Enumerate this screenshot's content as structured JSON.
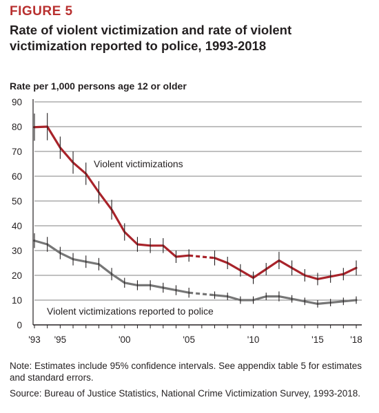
{
  "figure_label": "FIGURE 5",
  "title": "Rate of violent victimization and rate of violent victimization reported to police, 1993-2018",
  "note": "Note: Estimates include 95% confidence intervals. See appendix table 5 for estimates and standard errors.",
  "source": "Source: Bureau of Justice Statistics, National Crime Victimization Survey, 1993-2018.",
  "colors": {
    "accent": "#b8302f",
    "violent": "#a8232a",
    "reported": "#767676",
    "axis": "#231f20",
    "grid": "#808080"
  },
  "chart_data": {
    "type": "line",
    "title": "Rate of violent victimization and rate of violent victimization reported to police, 1993-2018",
    "ylabel": "Rate per 1,000 persons age 12 or older",
    "xlabel": "",
    "ylim": [
      0,
      90
    ],
    "yticks": [
      0,
      10,
      20,
      30,
      40,
      50,
      60,
      70,
      80,
      90
    ],
    "xlim": [
      1993,
      2018
    ],
    "xticks": [
      {
        "year": 1993,
        "label": "'93"
      },
      {
        "year": 1995,
        "label": "'95"
      },
      {
        "year": 2000,
        "label": "'00"
      },
      {
        "year": 2005,
        "label": "'05"
      },
      {
        "year": 2010,
        "label": "'10"
      },
      {
        "year": 2015,
        "label": "'15"
      },
      {
        "year": 2018,
        "label": "'18"
      }
    ],
    "grid": true,
    "dashed_segment": [
      2005,
      2007
    ],
    "x": [
      1993,
      1994,
      1995,
      1996,
      1997,
      1998,
      1999,
      2000,
      2001,
      2002,
      2003,
      2004,
      2005,
      2006,
      2007,
      2008,
      2009,
      2010,
      2011,
      2012,
      2013,
      2014,
      2015,
      2016,
      2017,
      2018
    ],
    "series": [
      {
        "name": "Violent victimizations",
        "values": [
          79.8,
          80.0,
          71.5,
          65.5,
          61.0,
          53.5,
          46.5,
          37.5,
          32.5,
          32.0,
          32.0,
          27.5,
          28.0,
          null,
          27.0,
          25.0,
          22.0,
          19.0,
          22.5,
          26.0,
          23.0,
          20.0,
          18.5,
          19.5,
          20.5,
          23.0
        ],
        "ci": [
          5.5,
          5.5,
          4.5,
          4.5,
          4.5,
          4.5,
          4.0,
          3.5,
          3.0,
          3.0,
          3.0,
          2.5,
          2.5,
          null,
          3.0,
          2.5,
          2.5,
          2.5,
          2.5,
          3.5,
          3.0,
          2.5,
          2.5,
          2.5,
          2.5,
          3.0
        ]
      },
      {
        "name": "Violent victimizations reported to police",
        "values": [
          34.0,
          32.5,
          29.0,
          26.5,
          25.5,
          24.5,
          20.5,
          17.0,
          16.0,
          16.0,
          15.0,
          14.0,
          13.0,
          null,
          12.0,
          11.5,
          10.0,
          10.0,
          11.5,
          11.5,
          10.5,
          9.5,
          8.5,
          9.0,
          9.5,
          10.0
        ],
        "ci": [
          3.0,
          3.0,
          2.5,
          2.5,
          2.5,
          2.5,
          2.5,
          2.0,
          2.0,
          2.0,
          2.0,
          2.0,
          2.0,
          null,
          1.5,
          1.5,
          1.5,
          1.5,
          1.5,
          2.0,
          1.5,
          1.5,
          1.5,
          1.5,
          1.5,
          1.5
        ]
      }
    ],
    "annotations": [
      {
        "text": "Violent victimizations",
        "series": 0
      },
      {
        "text": "Violent victimizations reported to police",
        "series": 1
      }
    ]
  }
}
